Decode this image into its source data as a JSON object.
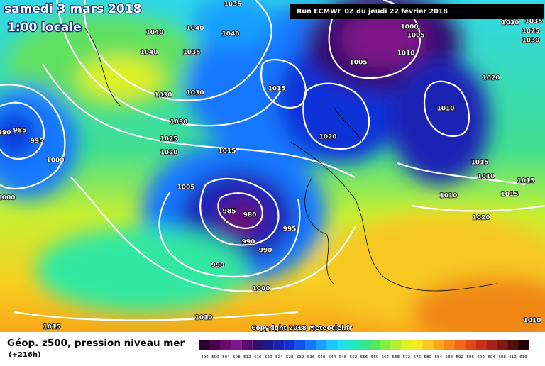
{
  "header": {
    "date": "samedi 3 mars 2018",
    "time": "1:00 locale",
    "run": "Run ECMWF 0Z du jeudi 22 février 2018"
  },
  "footer": {
    "field": "Géop. z500, pression niveau mer",
    "lead": "(+216h)",
    "copyright": "Copyright 2018 Meteociel.fr"
  },
  "isobar_labels": [
    "1035",
    "1040",
    "1040",
    "1040",
    "1040",
    "1035",
    "1030",
    "1030",
    "1030",
    "1025",
    "1020",
    "1015",
    "985",
    "990",
    "995",
    "1000",
    "1005",
    "985",
    "980",
    "995",
    "990",
    "990",
    "990",
    "1000",
    "1010",
    "1015",
    "1000",
    "1015",
    "1020",
    "1000",
    "1005",
    "1010",
    "1005",
    "1010",
    "1030",
    "1035",
    "1025",
    "1030",
    "1020",
    "1015",
    "1010",
    "1015",
    "1015",
    "1010",
    "1020",
    "1010"
  ],
  "scale": {
    "labels": [
      "496",
      "500",
      "504",
      "508",
      "512",
      "516",
      "520",
      "524",
      "528",
      "532",
      "536",
      "540",
      "544",
      "548",
      "552",
      "556",
      "560",
      "564",
      "568",
      "572",
      "576",
      "580",
      "584",
      "588",
      "592",
      "596",
      "600",
      "604",
      "608",
      "612",
      "616"
    ],
    "colors": [
      "#2a0030",
      "#4b0050",
      "#6a0a6e",
      "#7e1888",
      "#5a0a6a",
      "#30106e",
      "#1e1a8a",
      "#1a22b4",
      "#1030d8",
      "#1050f0",
      "#1478ff",
      "#18a0ff",
      "#18c8ff",
      "#20e0f0",
      "#20e8c0",
      "#30e890",
      "#50e860",
      "#80f040",
      "#b0f030",
      "#e0f020",
      "#f8e820",
      "#f8c820",
      "#f8a818",
      "#f88818",
      "#f06818",
      "#e04818",
      "#c83018",
      "#a82018",
      "#801810",
      "#501008",
      "#200400"
    ]
  }
}
